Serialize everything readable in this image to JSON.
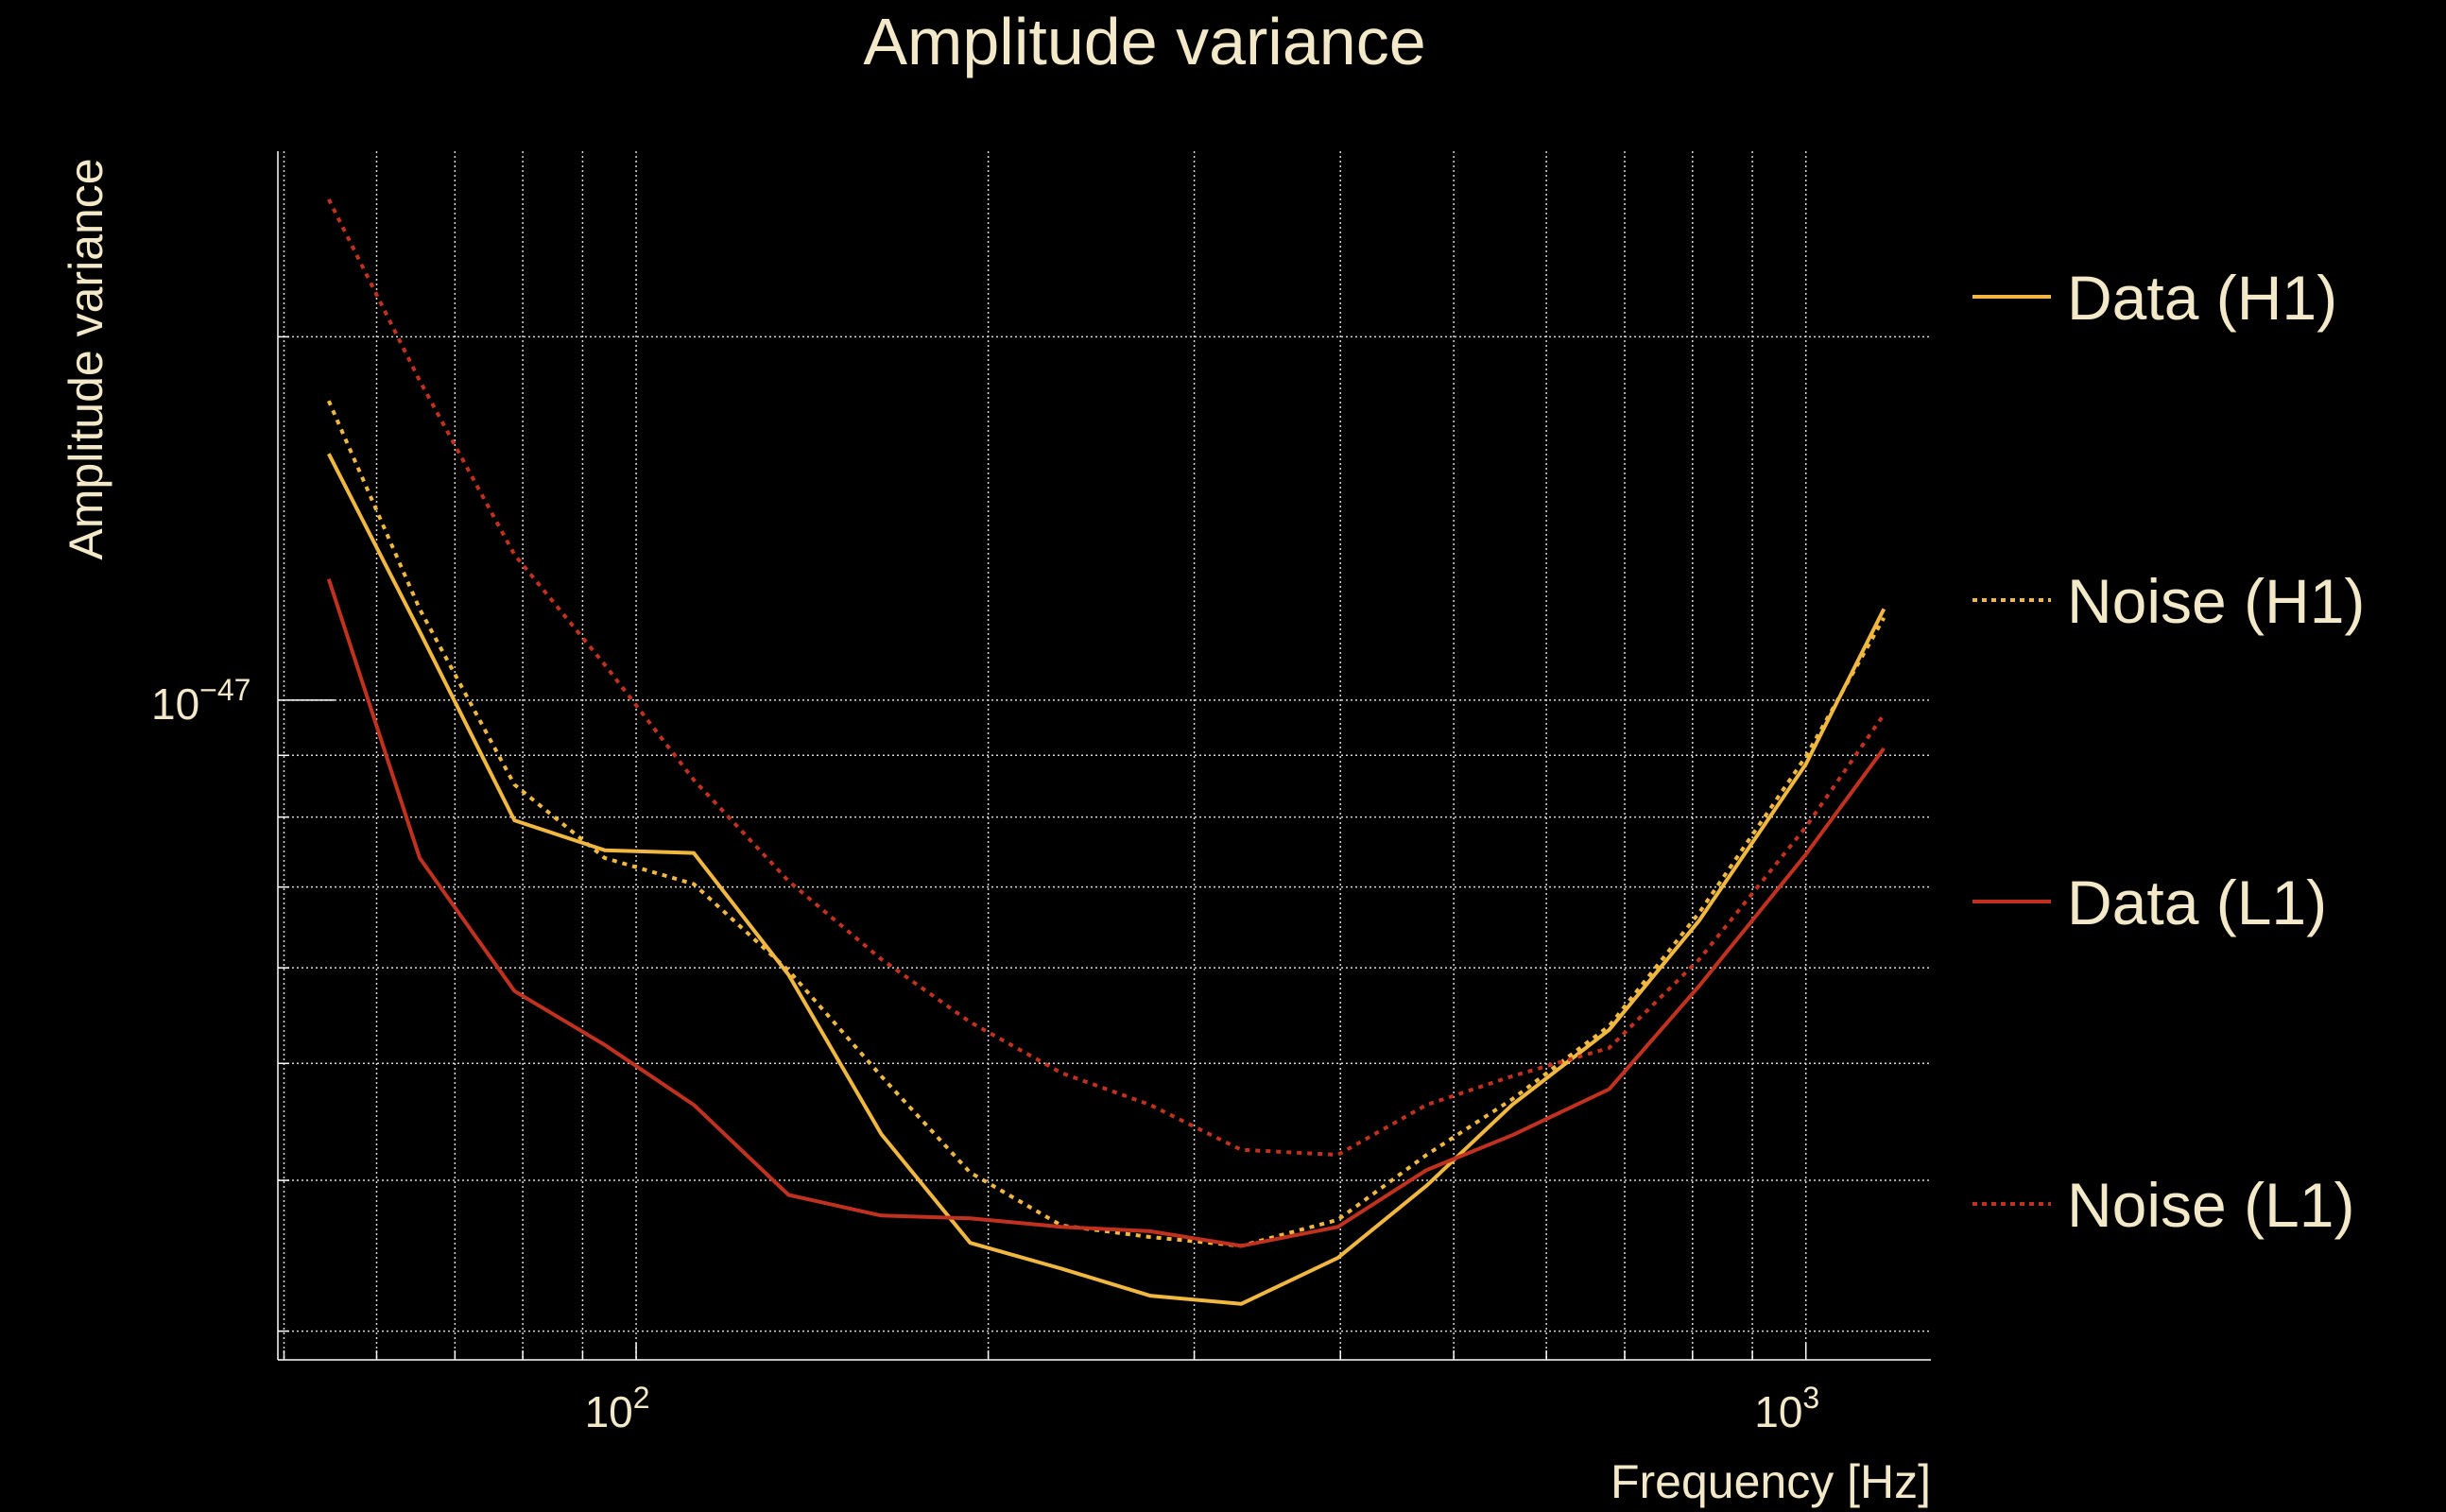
{
  "chart_data": {
    "type": "line",
    "title": "Amplitude variance",
    "xlabel": "Frequency [Hz]",
    "ylabel": "Amplitude variance",
    "xscale": "log",
    "yscale": "log",
    "xlim": [
      49.4,
      1279
    ],
    "ylim": [
      2.84e-48,
      2.85e-47
    ],
    "x_ticks": [
      {
        "value": 100,
        "base": "10",
        "exp": "2"
      },
      {
        "value": 1000,
        "base": "10",
        "exp": "3"
      }
    ],
    "y_ticks": [
      {
        "value": 1e-47,
        "base": "10",
        "exp": "−47"
      }
    ],
    "grid": true,
    "legend_position": "right",
    "colors": {
      "background": "#000000",
      "text": "#f3e8c8",
      "h1": "#f0b840",
      "l1": "#c0321f",
      "grid": "#d8d8d8"
    },
    "x": [
      54.6,
      65.3,
      78.7,
      94,
      112,
      135,
      162,
      193,
      231,
      275,
      329,
      398,
      474,
      561,
      679,
      811,
      1000,
      1166
    ],
    "y_unit": 1e-47,
    "series": [
      {
        "name": "Data (H1)",
        "color": "#f0b840",
        "style": "solid",
        "values": [
          1.6,
          1.14,
          0.795,
          0.751,
          0.747,
          0.592,
          0.437,
          0.355,
          0.338,
          0.321,
          0.316,
          0.345,
          0.396,
          0.462,
          0.533,
          0.657,
          0.885,
          1.19
        ]
      },
      {
        "name": "Noise (H1)",
        "color": "#f0b840",
        "style": "dotted",
        "values": [
          1.77,
          1.19,
          0.851,
          0.74,
          0.704,
          0.597,
          0.488,
          0.406,
          0.367,
          0.359,
          0.353,
          0.371,
          0.42,
          0.467,
          0.537,
          0.667,
          0.898,
          1.17
        ]
      },
      {
        "name": "Data (L1)",
        "color": "#c0321f",
        "style": "solid",
        "values": [
          1.26,
          0.74,
          0.574,
          0.518,
          0.462,
          0.389,
          0.374,
          0.372,
          0.366,
          0.363,
          0.353,
          0.366,
          0.408,
          0.436,
          0.476,
          0.58,
          0.745,
          0.912
        ]
      },
      {
        "name": "Noise (L1)",
        "color": "#c0321f",
        "style": "dotted",
        "values": [
          2.6,
          1.84,
          1.32,
          1.07,
          0.859,
          0.708,
          0.61,
          0.541,
          0.491,
          0.462,
          0.424,
          0.42,
          0.462,
          0.488,
          0.515,
          0.61,
          0.785,
          0.973
        ]
      }
    ]
  }
}
